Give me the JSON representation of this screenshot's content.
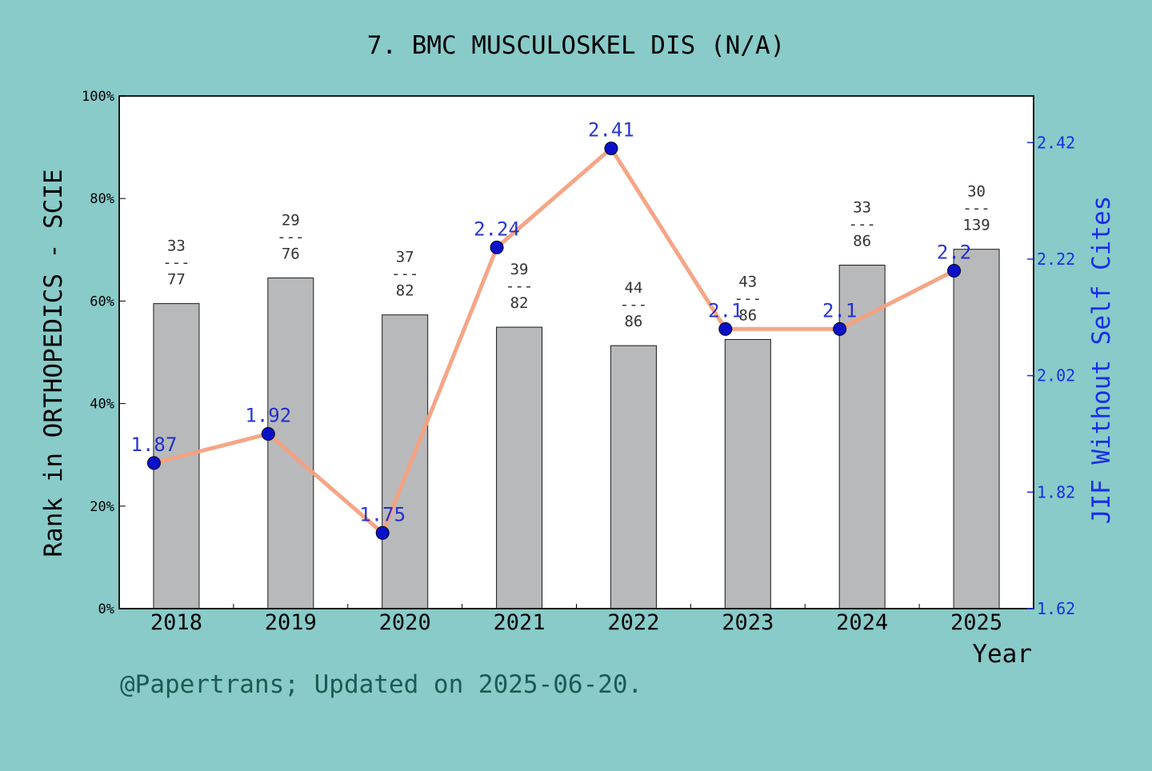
{
  "colors": {
    "background": "#88cbc9",
    "plot_background": "#ffffff",
    "bar_fill": "#b8b9ba",
    "line": "#f5a07f",
    "marker": "#0a10c8",
    "jif_label": "#1020d0",
    "right_axis": "#1a2ee8",
    "footer": "#1e5a52"
  },
  "footer": "@Papertrans; Updated on 2025-06-20.",
  "chart_data": {
    "type": "bar",
    "title": "7. BMC MUSCULOSKEL DIS (N/A)",
    "xlabel": "Year",
    "ylabel": "Rank in ORTHOPEDICS - SCIE",
    "y2label": "JIF Without Self Cites",
    "categories": [
      "2018",
      "2019",
      "2020",
      "2021",
      "2022",
      "2023",
      "2024",
      "2025"
    ],
    "ylim": [
      0,
      100
    ],
    "yticks": [
      "0%",
      "20%",
      "40%",
      "60%",
      "80%",
      "100%"
    ],
    "y2lim": [
      1.62,
      2.5
    ],
    "y2ticks": [
      "1.62",
      "1.82",
      "2.02",
      "2.22",
      "2.42"
    ],
    "legend": "none",
    "grid": false,
    "series": [
      {
        "type": "bar",
        "values": [
          59.5,
          64.5,
          57.3,
          54.9,
          51.3,
          52.5,
          67.0,
          70.1
        ],
        "rank": [
          33,
          29,
          37,
          39,
          44,
          43,
          33,
          30
        ],
        "total": [
          77,
          76,
          82,
          82,
          86,
          86,
          86,
          139
        ],
        "separator": "---"
      },
      {
        "type": "line",
        "axis": "right",
        "values": [
          1.87,
          1.92,
          1.75,
          2.24,
          2.41,
          2.1,
          2.1,
          2.2
        ],
        "labels": [
          "1.87",
          "1.92",
          "1.75",
          "2.24",
          "2.41",
          "2.1",
          "2.1",
          "2.2"
        ]
      }
    ]
  }
}
